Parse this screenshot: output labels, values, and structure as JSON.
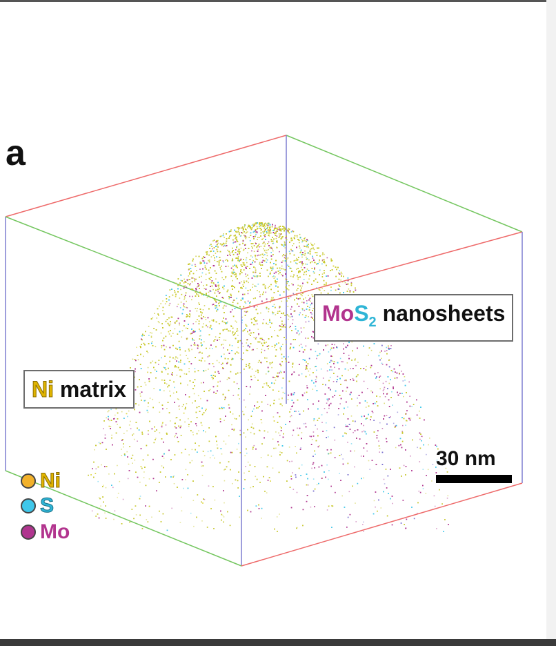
{
  "panel_letter": "a",
  "labels": {
    "mos2_mo": "Mo",
    "mos2_s": "S",
    "mos2_sub": "2",
    "mos2_rest": "nanosheets",
    "ni_element": "Ni",
    "ni_rest": "matrix"
  },
  "scale_bar": {
    "text": "30 nm"
  },
  "legend": [
    {
      "label": "Ni",
      "color": "#f2b12a",
      "text_color": "#e0b400"
    },
    {
      "label": "S",
      "color": "#3fc7ea",
      "text_color": "#2fb5d6"
    },
    {
      "label": "Mo",
      "color": "#b0358f",
      "text_color": "#b2348e"
    }
  ],
  "colors": {
    "box_red": "#ee6a6a",
    "box_green": "#74c65f",
    "box_blue": "#7f7fd0",
    "ni_atom": "#c8c82c",
    "mo_atom": "#b0358f",
    "s_atom": "#3fc7ea"
  }
}
